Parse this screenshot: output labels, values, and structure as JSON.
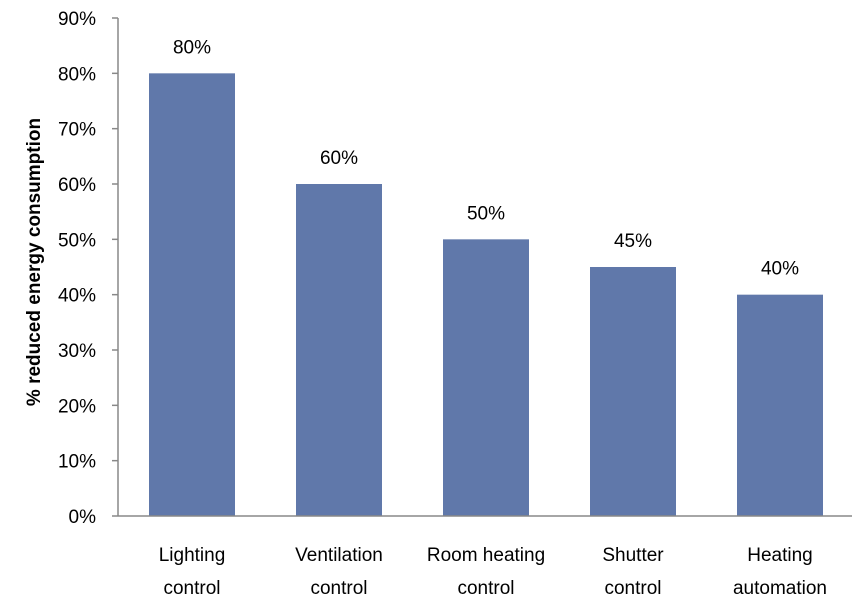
{
  "chart_data": {
    "type": "bar",
    "categories": [
      [
        "Lighting",
        "control"
      ],
      [
        "Ventilation",
        "control"
      ],
      [
        "Room heating",
        "control"
      ],
      [
        "Shutter",
        "control"
      ],
      [
        "Heating",
        "automation"
      ]
    ],
    "values": [
      80,
      60,
      50,
      45,
      40
    ],
    "data_labels": [
      "80%",
      "60%",
      "50%",
      "45%",
      "40%"
    ],
    "title": "",
    "xlabel": "",
    "ylabel": "% reduced energy consumption",
    "ylim": [
      0,
      90
    ],
    "yticks": [
      0,
      10,
      20,
      30,
      40,
      50,
      60,
      70,
      80,
      90
    ],
    "ytick_labels": [
      "0%",
      "10%",
      "20%",
      "30%",
      "40%",
      "50%",
      "60%",
      "70%",
      "80%",
      "90%"
    ],
    "grid": false,
    "legend": "none",
    "bar_color": "#6078AA"
  }
}
